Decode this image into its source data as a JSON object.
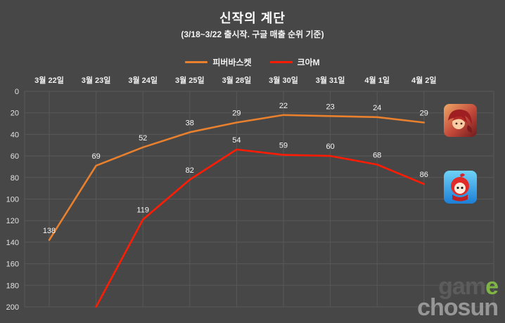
{
  "title": "신작의 계단",
  "subtitle": "(3/18~3/22 출시작. 구글 매출 순위 기준)",
  "watermark": {
    "part1": "gam",
    "accent": "e",
    "line2": "chosun"
  },
  "colors": {
    "background": "#474747",
    "grid": "#585858",
    "series_orange": "#e8802e",
    "series_red": "#ff1c05"
  },
  "chart_data": {
    "type": "line",
    "title": "신작의 계단",
    "subtitle": "(3/18~3/22 출시작. 구글 매출 순위 기준)",
    "categories": [
      "3월 22일",
      "3월 23일",
      "3월 24일",
      "3월 25일",
      "3월 28일",
      "3월 30일",
      "3월 31일",
      "4월 1일",
      "4월 2일"
    ],
    "series": [
      {
        "name": "피버바스켓",
        "color": "#e8802e",
        "values": [
          138,
          69,
          52,
          38,
          29,
          22,
          23,
          24,
          29
        ],
        "labels": [
          138,
          69,
          52,
          38,
          29,
          22,
          23,
          24,
          29
        ]
      },
      {
        "name": "크아M",
        "color": "#ff1c05",
        "values": [
          null,
          200,
          119,
          82,
          54,
          59,
          60,
          68,
          86
        ],
        "labels": [
          null,
          null,
          119,
          82,
          54,
          59,
          60,
          68,
          86
        ]
      }
    ],
    "ylim": [
      0,
      200
    ],
    "y_inverted": true,
    "y_ticks": [
      0,
      20,
      40,
      60,
      80,
      100,
      120,
      140,
      160,
      180,
      200
    ],
    "grid": true,
    "legend_position": "top",
    "x_axis_position": "top",
    "note": "y axis is rank (lower is better), 0 at top, 200 at bottom"
  }
}
